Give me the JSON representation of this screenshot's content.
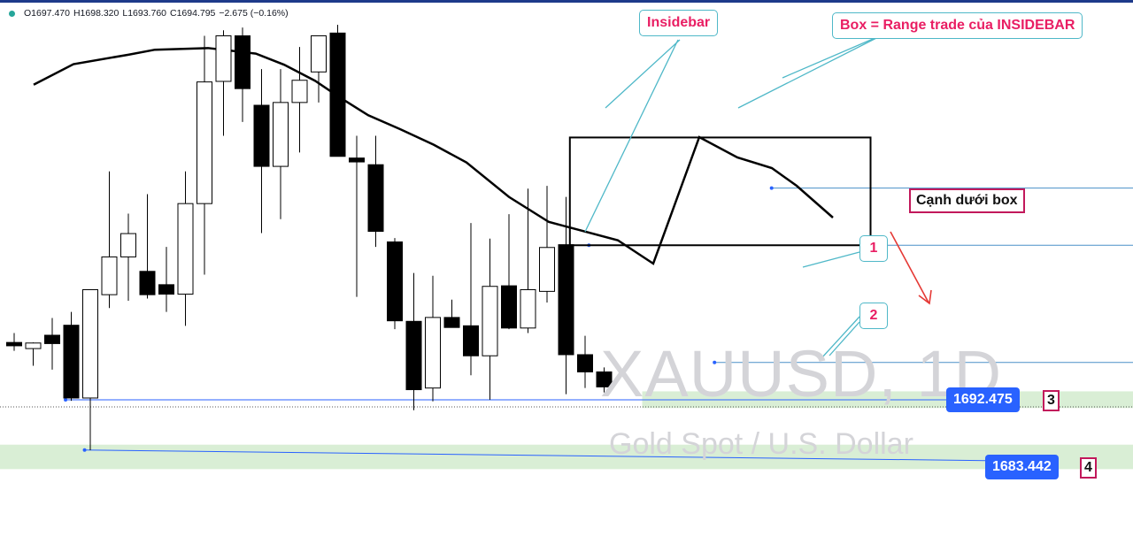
{
  "ohlc_readout": {
    "open": "O1697.470",
    "high": "H1698.320",
    "low": "L1693.760",
    "close": "C1694.795",
    "change": "−2.675 (−0.16%)"
  },
  "watermark": {
    "symbol": "XAUUSD, 1D",
    "description": "Gold Spot / U.S. Dollar"
  },
  "annotations": {
    "insidebar": "Insidebar",
    "box_range": "Box = Range trade của INSIDEBAR",
    "box_bottom": "Cạnh dưới box",
    "marker_1": "1",
    "marker_2": "2",
    "marker_3": "3",
    "marker_4": "4"
  },
  "price_labels": {
    "level_1": "1692.475",
    "level_2": "1683.442"
  },
  "colors": {
    "bear_candle": "#000000",
    "bull_candle": "#ffffff",
    "moving_average": "#000000",
    "annotation_text": "#e91e63",
    "callout_border": "#4fb8c8",
    "price_tag": "#2962ff",
    "support_zone": "#d9eed5"
  },
  "chart_data": {
    "type": "candlestick",
    "symbol": "XAUUSD",
    "timeframe": "1D",
    "y_range": [
      1680,
      1760
    ],
    "candles": [
      {
        "o": 1702.8,
        "h": 1704.5,
        "l": 1701.3,
        "c": 1702.2
      },
      {
        "o": 1701.7,
        "h": 1702.8,
        "l": 1698.6,
        "c": 1702.7
      },
      {
        "o": 1704.1,
        "h": 1707.2,
        "l": 1697.9,
        "c": 1702.6
      },
      {
        "o": 1705.9,
        "h": 1708.3,
        "l": 1692.3,
        "c": 1692.8
      },
      {
        "o": 1692.8,
        "h": 1712.3,
        "l": 1683.4,
        "c": 1712.3
      },
      {
        "o": 1711.4,
        "h": 1733.6,
        "l": 1709.0,
        "c": 1718.2
      },
      {
        "o": 1718.2,
        "h": 1726.0,
        "l": 1710.3,
        "c": 1722.4
      },
      {
        "o": 1715.6,
        "h": 1729.5,
        "l": 1710.7,
        "c": 1711.4
      },
      {
        "o": 1713.2,
        "h": 1720.0,
        "l": 1708.3,
        "c": 1711.5
      },
      {
        "o": 1711.5,
        "h": 1733.6,
        "l": 1705.8,
        "c": 1727.8
      },
      {
        "o": 1727.8,
        "h": 1758.0,
        "l": 1715.0,
        "c": 1749.7
      },
      {
        "o": 1749.8,
        "h": 1759.0,
        "l": 1740.0,
        "c": 1758.0
      },
      {
        "o": 1758.0,
        "h": 1759.5,
        "l": 1742.5,
        "c": 1748.5
      },
      {
        "o": 1745.5,
        "h": 1752.0,
        "l": 1722.5,
        "c": 1734.5
      },
      {
        "o": 1734.5,
        "h": 1752.0,
        "l": 1725.0,
        "c": 1746.0
      },
      {
        "o": 1746.0,
        "h": 1756.0,
        "l": 1737.0,
        "c": 1750.0
      },
      {
        "o": 1751.5,
        "h": 1758.0,
        "l": 1746.0,
        "c": 1758.0
      },
      {
        "o": 1758.5,
        "h": 1760.0,
        "l": 1736.3,
        "c": 1736.3
      },
      {
        "o": 1736.0,
        "h": 1740.0,
        "l": 1711.0,
        "c": 1735.3
      },
      {
        "o": 1734.8,
        "h": 1740.0,
        "l": 1720.0,
        "c": 1722.8
      },
      {
        "o": 1720.9,
        "h": 1721.6,
        "l": 1705.2,
        "c": 1706.7
      },
      {
        "o": 1706.6,
        "h": 1715.3,
        "l": 1690.6,
        "c": 1694.3
      },
      {
        "o": 1694.6,
        "h": 1714.8,
        "l": 1692.2,
        "c": 1707.3
      },
      {
        "o": 1707.3,
        "h": 1710.5,
        "l": 1705.5,
        "c": 1705.5
      },
      {
        "o": 1705.8,
        "h": 1724.3,
        "l": 1696.9,
        "c": 1700.4
      },
      {
        "o": 1700.4,
        "h": 1721.5,
        "l": 1692.5,
        "c": 1712.9
      },
      {
        "o": 1713.0,
        "h": 1725.9,
        "l": 1705.2,
        "c": 1705.4
      },
      {
        "o": 1705.4,
        "h": 1730.5,
        "l": 1704.5,
        "c": 1712.3
      },
      {
        "o": 1712.0,
        "h": 1731.0,
        "l": 1710.0,
        "c": 1719.9
      },
      {
        "o": 1720.4,
        "h": 1729.0,
        "l": 1693.5,
        "c": 1700.6
      },
      {
        "o": 1700.6,
        "h": 1704.0,
        "l": 1694.6,
        "c": 1697.5
      },
      {
        "o": 1697.5,
        "h": 1698.3,
        "l": 1693.8,
        "c": 1694.8
      }
    ],
    "moving_average": [
      1749.2,
      1752.9,
      1754.6,
      1755.5,
      1755.8,
      1754.8,
      1752.8,
      1749.9,
      1746.8,
      1743.7,
      1741.2,
      1738.4,
      1735.2,
      1729.0,
      1724.5,
      1721.2,
      1717.0
    ],
    "moving_average_start_index": 0,
    "horizontal_levels": [
      1692.475,
      1683.442
    ],
    "support_zones": [
      [
        1691,
        1694
      ],
      [
        1680,
        1684.4
      ]
    ],
    "range_box": {
      "top": 1739.7,
      "bottom": 1720.3
    },
    "current_price": 1694.795
  }
}
